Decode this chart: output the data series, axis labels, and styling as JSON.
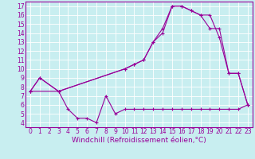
{
  "xlabel": "Windchill (Refroidissement éolien,°C)",
  "xlim": [
    -0.5,
    23.5
  ],
  "ylim": [
    3.5,
    17.5
  ],
  "yticks": [
    4,
    5,
    6,
    7,
    8,
    9,
    10,
    11,
    12,
    13,
    14,
    15,
    16,
    17
  ],
  "xticks": [
    0,
    1,
    2,
    3,
    4,
    5,
    6,
    7,
    8,
    9,
    10,
    11,
    12,
    13,
    14,
    15,
    16,
    17,
    18,
    19,
    20,
    21,
    22,
    23
  ],
  "bg_color": "#c8eef0",
  "grid_color": "#ffffff",
  "line_color": "#990099",
  "line1_x": [
    0,
    1,
    3,
    10,
    11,
    12,
    13,
    14,
    15,
    16,
    17,
    18,
    19,
    20,
    21,
    22,
    23
  ],
  "line1_y": [
    7.5,
    9.0,
    7.5,
    10.0,
    10.5,
    11.0,
    13.0,
    14.5,
    17.0,
    17.0,
    16.5,
    16.0,
    16.0,
    13.5,
    9.5,
    9.5,
    6.0
  ],
  "line2_x": [
    0,
    1,
    3,
    10,
    11,
    12,
    13,
    14,
    15,
    16,
    17,
    18,
    19,
    20,
    21,
    22,
    23
  ],
  "line2_y": [
    7.5,
    9.0,
    7.5,
    10.0,
    10.5,
    11.0,
    13.0,
    14.0,
    17.0,
    17.0,
    16.5,
    16.0,
    14.5,
    14.5,
    9.5,
    9.5,
    6.0
  ],
  "line3_x": [
    0,
    3,
    4,
    5,
    6,
    7,
    8,
    9,
    10,
    11,
    12,
    13,
    14,
    15,
    16,
    17,
    18,
    19,
    20,
    21,
    22,
    23
  ],
  "line3_y": [
    7.5,
    7.5,
    5.5,
    4.5,
    4.5,
    4.0,
    7.0,
    5.0,
    5.5,
    5.5,
    5.5,
    5.5,
    5.5,
    5.5,
    5.5,
    5.5,
    5.5,
    5.5,
    5.5,
    5.5,
    5.5,
    6.0
  ],
  "marker": "+",
  "markersize": 3,
  "linewidth": 0.8,
  "tick_fontsize": 5.5,
  "xlabel_fontsize": 6.5
}
